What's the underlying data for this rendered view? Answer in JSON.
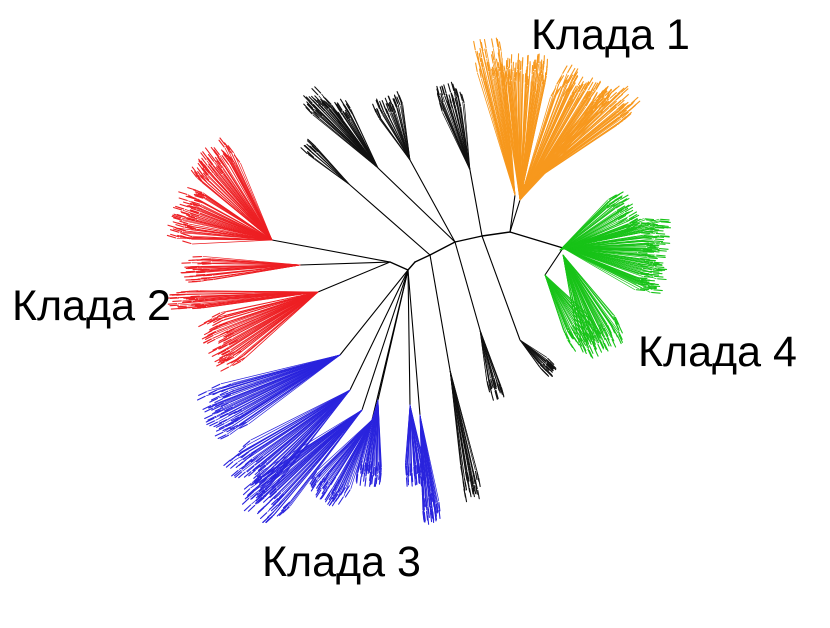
{
  "clades": [
    {
      "label": "Клада 1",
      "color": "#f7981d"
    },
    {
      "label": "Клада 2",
      "color": "#ed2024"
    },
    {
      "label": "Клада 3",
      "color": "#2a24dd"
    },
    {
      "label": "Клада 4",
      "color": "#18c318"
    }
  ],
  "unassigned_color": "#111111"
}
